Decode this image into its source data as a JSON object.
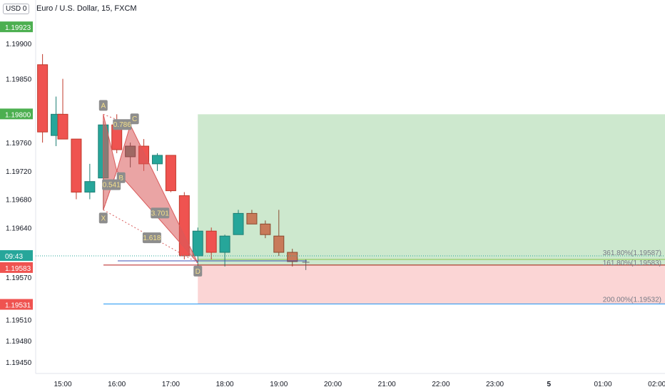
{
  "header": {
    "currency_label": "USD",
    "currency_suffix": "0",
    "symbol_title": "Euro / U.S. Dollar, 15, FXCM"
  },
  "colors": {
    "up": "#26a69a",
    "down": "#ef5350",
    "neutral_up": "#2bb69a",
    "muted_down": "#c87a5a",
    "pattern_fill": "#d95a5a",
    "target_zone": "#c8e6c9",
    "stop_zone": "#fbd0d0",
    "price_green": "#4caf50",
    "price_red": "#ef5350",
    "price_teal": "#26a69a"
  },
  "chart_data": {
    "type": "candlestick",
    "title": "Euro / U.S. Dollar, 15, FXCM",
    "ylim": [
      1.1942,
      1.1999
    ],
    "y_ticks": [
      "1.19900",
      "1.19850",
      "1.19800",
      "1.19760",
      "1.19720",
      "1.19680",
      "1.19640",
      "1.19583",
      "1.19570",
      "1.19531",
      "1.19510",
      "1.19480",
      "1.19450"
    ],
    "x_ticks": [
      "15:00",
      "16:00",
      "17:00",
      "18:00",
      "19:00",
      "20:00",
      "21:00",
      "22:00",
      "23:00",
      "5",
      "01:00",
      "02:00"
    ],
    "x_tick_times": [
      15.0,
      16.0,
      17.0,
      18.0,
      19.0,
      20.0,
      21.0,
      22.0,
      23.0,
      24.0,
      25.0,
      26.0
    ],
    "candles": [
      {
        "t": 14.625,
        "o": 1.1987,
        "h": 1.19885,
        "l": 1.1976,
        "c": 1.19775,
        "style": "down"
      },
      {
        "t": 14.875,
        "o": 1.1977,
        "h": 1.19825,
        "l": 1.19755,
        "c": 1.198,
        "style": "up"
      },
      {
        "t": 15.0,
        "o": 1.198,
        "h": 1.1985,
        "l": 1.19765,
        "c": 1.19765,
        "style": "down"
      },
      {
        "t": 15.25,
        "o": 1.19765,
        "h": 1.19765,
        "l": 1.1968,
        "c": 1.1969,
        "style": "down"
      },
      {
        "t": 15.5,
        "o": 1.1969,
        "h": 1.1973,
        "l": 1.1968,
        "c": 1.19705,
        "style": "up"
      },
      {
        "t": 15.75,
        "o": 1.1971,
        "h": 1.1979,
        "l": 1.19665,
        "c": 1.19785,
        "style": "up"
      },
      {
        "t": 16.0,
        "o": 1.19785,
        "h": 1.198,
        "l": 1.19745,
        "c": 1.1975,
        "style": "down"
      },
      {
        "t": 16.25,
        "o": 1.1974,
        "h": 1.1976,
        "l": 1.19725,
        "c": 1.19755,
        "style": "neutral"
      },
      {
        "t": 16.5,
        "o": 1.19755,
        "h": 1.19765,
        "l": 1.1972,
        "c": 1.1973,
        "style": "down"
      },
      {
        "t": 16.75,
        "o": 1.1973,
        "h": 1.19745,
        "l": 1.1972,
        "c": 1.19742,
        "style": "up"
      },
      {
        "t": 17.0,
        "o": 1.19742,
        "h": 1.19742,
        "l": 1.1969,
        "c": 1.19692,
        "style": "down"
      },
      {
        "t": 17.25,
        "o": 1.19685,
        "h": 1.1969,
        "l": 1.19595,
        "c": 1.196,
        "style": "down"
      },
      {
        "t": 17.5,
        "o": 1.196,
        "h": 1.1964,
        "l": 1.19585,
        "c": 1.19635,
        "style": "up"
      },
      {
        "t": 17.75,
        "o": 1.19635,
        "h": 1.1964,
        "l": 1.19595,
        "c": 1.19605,
        "style": "down"
      },
      {
        "t": 18.0,
        "o": 1.19605,
        "h": 1.1963,
        "l": 1.19585,
        "c": 1.19628,
        "style": "up"
      },
      {
        "t": 18.25,
        "o": 1.1963,
        "h": 1.19665,
        "l": 1.1963,
        "c": 1.1966,
        "style": "up"
      },
      {
        "t": 18.5,
        "o": 1.1966,
        "h": 1.19665,
        "l": 1.19645,
        "c": 1.19645,
        "style": "muted_down"
      },
      {
        "t": 18.75,
        "o": 1.19645,
        "h": 1.1965,
        "l": 1.19625,
        "c": 1.1963,
        "style": "muted_down"
      },
      {
        "t": 19.0,
        "o": 1.19628,
        "h": 1.19665,
        "l": 1.196,
        "c": 1.19605,
        "style": "muted_down"
      },
      {
        "t": 19.25,
        "o": 1.19605,
        "h": 1.1961,
        "l": 1.19585,
        "c": 1.19592,
        "style": "muted_down"
      },
      {
        "t": 19.5,
        "o": 1.19593,
        "h": 1.19595,
        "l": 1.1958,
        "c": 1.19591,
        "style": "cross"
      }
    ],
    "xabcd_pattern": {
      "points": [
        {
          "label": "X",
          "t": 15.75,
          "price": 1.19665
        },
        {
          "label": "A",
          "t": 15.75,
          "price": 1.198
        },
        {
          "label": "B",
          "t": 16.0,
          "price": 1.1972
        },
        {
          "label": "C",
          "t": 16.25,
          "price": 1.19785
        },
        {
          "label": "D",
          "t": 17.5,
          "price": 1.1959
        }
      ],
      "ratios": [
        {
          "label": "0.786",
          "t": 16.1,
          "price": 1.19785
        },
        {
          "label": "0.541",
          "t": 15.9,
          "price": 1.197
        },
        {
          "label": "3.701",
          "t": 16.8,
          "price": 1.1966
        },
        {
          "label": "1.618",
          "t": 16.65,
          "price": 1.19625
        }
      ]
    },
    "position_tool": {
      "entry_t": 17.5,
      "entry_price": 1.19587,
      "target_price": 1.198,
      "stop_price": 1.19532,
      "levels": [
        {
          "label": "361.80%(1.19587)",
          "price": 1.19595
        },
        {
          "label": "161.80%(1.19583)",
          "price": 1.1959
        },
        {
          "label": "200.00%(1.19532)",
          "price": 1.19532
        }
      ]
    },
    "price_tags": [
      {
        "label": "1.19923",
        "price": 1.19923,
        "color": "green"
      },
      {
        "label": "1.19800",
        "price": 1.198,
        "color": "green"
      },
      {
        "label": "09:43",
        "price": 1.196,
        "color": "teal"
      },
      {
        "label": "1.19583",
        "price": 1.19583,
        "color": "red"
      },
      {
        "label": "1.19531",
        "price": 1.19531,
        "color": "red"
      }
    ]
  }
}
